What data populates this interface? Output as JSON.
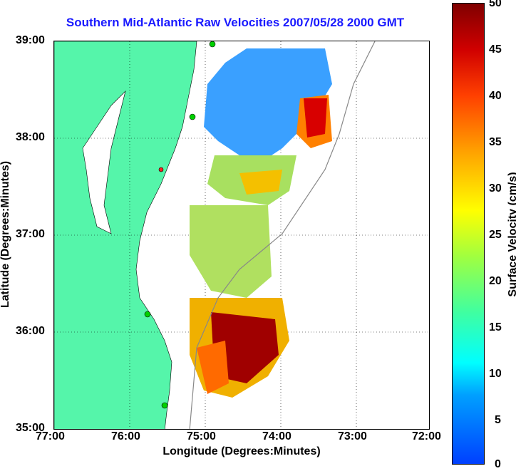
{
  "title": "Southern Mid-Atlantic Raw Velocities 2007/05/28 2000 GMT",
  "axes": {
    "xlabel": "Longitude (Degrees:Minutes)",
    "ylabel": "Latitude (Degrees:Minutes)",
    "xticks": [
      "77:00",
      "76:00",
      "75:00",
      "74:00",
      "73:00",
      "72:00"
    ],
    "yticks": [
      "39:00",
      "38:00",
      "37:00",
      "36:00",
      "35:00"
    ]
  },
  "colorbar": {
    "label": "Surface Velocity (cm/s)",
    "ticks": [
      "50",
      "45",
      "40",
      "35",
      "30",
      "25",
      "20",
      "15",
      "10",
      "5",
      "0"
    ]
  },
  "colors": {
    "land": "#55f5aa",
    "title": "#1a1aff"
  }
}
